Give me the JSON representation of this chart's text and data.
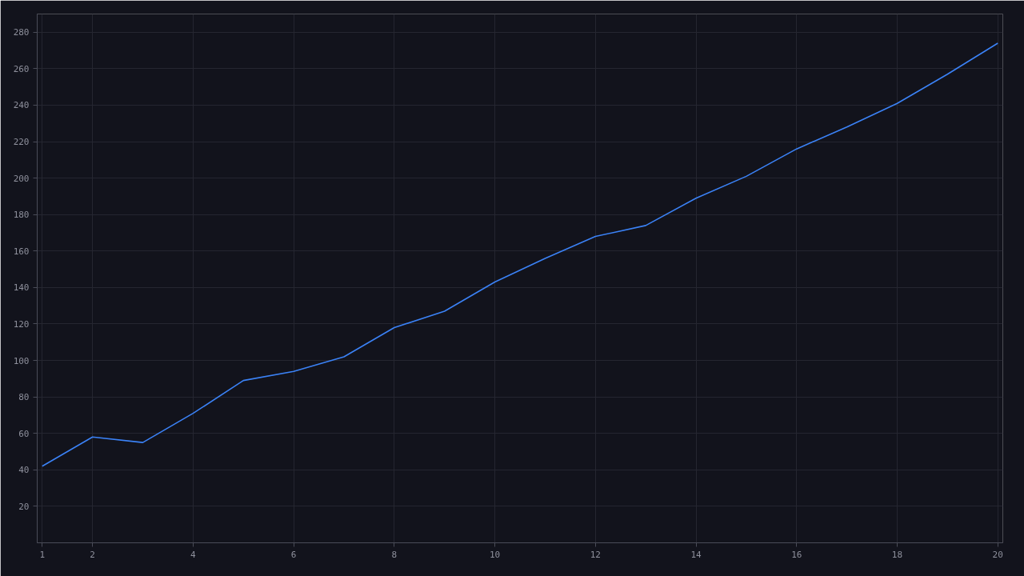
{
  "chart_data": {
    "type": "line",
    "x": [
      1,
      2,
      3,
      4,
      5,
      6,
      7,
      8,
      9,
      10,
      11,
      12,
      13,
      14,
      15,
      16,
      17,
      18,
      19,
      20
    ],
    "series": [
      {
        "color": "#3b82f6",
        "values": [
          42,
          58,
          55,
          71,
          89,
          94,
          102,
          118,
          127,
          143,
          156,
          168,
          174,
          189,
          201,
          216,
          228,
          241,
          257,
          274
        ]
      }
    ],
    "xlim": [
      0.9,
      20.1
    ],
    "xticks": [
      1,
      2,
      4,
      6,
      8,
      10,
      12,
      14,
      16,
      18,
      20
    ],
    "ylim": [
      0,
      290
    ],
    "yticks": [
      20,
      40,
      60,
      80,
      100,
      120,
      140,
      160,
      180,
      200,
      220,
      240,
      260,
      280
    ],
    "grid": true,
    "marker": "none",
    "line_style": "solid"
  }
}
